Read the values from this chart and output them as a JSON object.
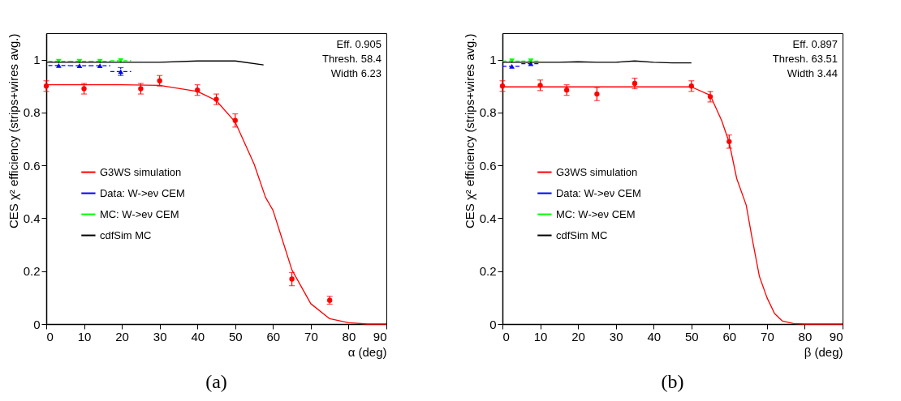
{
  "chart_data": [
    {
      "type": "scatter",
      "xlabel": "α (deg)",
      "ylabel": "CES χ² efficiency (strips+wires avg.)",
      "xlim": [
        0,
        90
      ],
      "xticks": [
        0,
        10,
        20,
        30,
        40,
        50,
        60,
        70,
        80,
        90
      ],
      "ylim": [
        0,
        1.1
      ],
      "yticks": [
        0,
        0.2,
        0.4,
        0.6,
        0.8,
        1
      ],
      "legend": "left",
      "annotations": [
        "Eff.   0.905",
        "Thresh.  58.4",
        "Width   6.23",
        "(a)"
      ],
      "series": [
        {
          "color": "#ff0000",
          "marker": "circle",
          "x": [
            0,
            10,
            25,
            30,
            40,
            45,
            50,
            65,
            75
          ],
          "values": [
            0.9,
            0.89,
            0.89,
            0.92,
            0.885,
            0.85,
            0.77,
            0.17,
            0.09
          ],
          "errors": [
            0.02,
            0.02,
            0.02,
            0.02,
            0.02,
            0.02,
            0.025,
            0.025,
            0.015
          ]
        },
        {
          "name": "G3WS simulation",
          "type": "line",
          "color": "#ff0000",
          "x": [
            0,
            20,
            30,
            40,
            45,
            50,
            55,
            58,
            60,
            62,
            65,
            70,
            75,
            80,
            85,
            90
          ],
          "values": [
            0.905,
            0.905,
            0.903,
            0.88,
            0.845,
            0.764,
            0.605,
            0.48,
            0.43,
            0.34,
            0.205,
            0.077,
            0.02,
            0.005,
            0,
            0
          ]
        },
        {
          "name": "Data: W->eν CEM",
          "color": "#0000ff",
          "marker": "triangle",
          "line_style": "dashed",
          "x": [
            3.3,
            8.8,
            14.2,
            19.7
          ],
          "values": [
            0.978,
            0.977,
            0.977,
            0.955
          ],
          "xerrors": [
            2.75,
            2.75,
            2.75,
            2.75
          ],
          "errors": [
            null,
            null,
            null,
            0.015
          ]
        },
        {
          "name": "MC: W->eν CEM",
          "color": "#00ff00",
          "marker": "triangle-down",
          "line_style": "dashed",
          "x": [
            3.3,
            8.8,
            14.2,
            19.7
          ],
          "values": [
            0.994,
            0.994,
            0.994,
            0.996
          ],
          "xerrors": [
            2.75,
            2.75,
            2.75,
            2.75
          ]
        },
        {
          "name": "cdfSim MC",
          "type": "line",
          "color": "#000000",
          "x": [
            0,
            10,
            20,
            30,
            40,
            50,
            57.5
          ],
          "values": [
            0.99,
            0.99,
            0.99,
            0.99,
            0.995,
            0.995,
            0.98
          ]
        }
      ]
    },
    {
      "type": "scatter",
      "xlabel": "β (deg)",
      "ylabel": "CES χ² efficiency (strips+wires avg.)",
      "xlim": [
        0,
        90
      ],
      "xticks": [
        0,
        10,
        20,
        30,
        40,
        50,
        60,
        70,
        80,
        90
      ],
      "ylim": [
        0,
        1.1
      ],
      "yticks": [
        0,
        0.2,
        0.4,
        0.6,
        0.8,
        1
      ],
      "legend": "left",
      "annotations": [
        "Eff.   0.897",
        "Thresh. 63.51",
        "Width   3.44",
        "(b)"
      ],
      "series": [
        {
          "color": "#ff0000",
          "marker": "circle",
          "x": [
            0,
            10,
            17,
            25,
            35,
            50,
            55,
            60
          ],
          "values": [
            0.9,
            0.903,
            0.885,
            0.87,
            0.91,
            0.9,
            0.86,
            0.69
          ],
          "errors": [
            0.02,
            0.02,
            0.02,
            0.025,
            0.02,
            0.02,
            0.02,
            0.025
          ]
        },
        {
          "name": "G3WS simulation",
          "type": "line",
          "color": "#ff0000",
          "x": [
            0,
            50,
            55,
            58,
            60,
            62,
            64.5,
            66,
            68,
            70,
            72,
            74,
            77,
            80,
            90
          ],
          "values": [
            0.897,
            0.897,
            0.865,
            0.77,
            0.687,
            0.55,
            0.45,
            0.33,
            0.18,
            0.1,
            0.04,
            0.012,
            0.002,
            0,
            0
          ]
        },
        {
          "name": "Data: W->eν CEM",
          "color": "#0000ff",
          "marker": "triangle",
          "line_style": "dashed",
          "x": [
            2.5,
            7.5
          ],
          "values": [
            0.975,
            0.985
          ],
          "xerrors": [
            2.5,
            2.5
          ]
        },
        {
          "name": "MC: W->eν CEM",
          "color": "#00ff00",
          "marker": "triangle-down",
          "line_style": "dashed",
          "x": [
            2.5,
            7.5
          ],
          "values": [
            0.995,
            0.995
          ],
          "xerrors": [
            2.5,
            2.5
          ]
        },
        {
          "name": "cdfSim MC",
          "type": "line",
          "color": "#000000",
          "x": [
            0,
            5,
            10,
            15,
            20,
            25,
            30,
            35,
            40,
            45,
            50
          ],
          "values": [
            0.99,
            0.99,
            0.99,
            0.99,
            0.992,
            0.99,
            0.99,
            0.995,
            0.99,
            0.988,
            0.988
          ]
        }
      ]
    }
  ]
}
